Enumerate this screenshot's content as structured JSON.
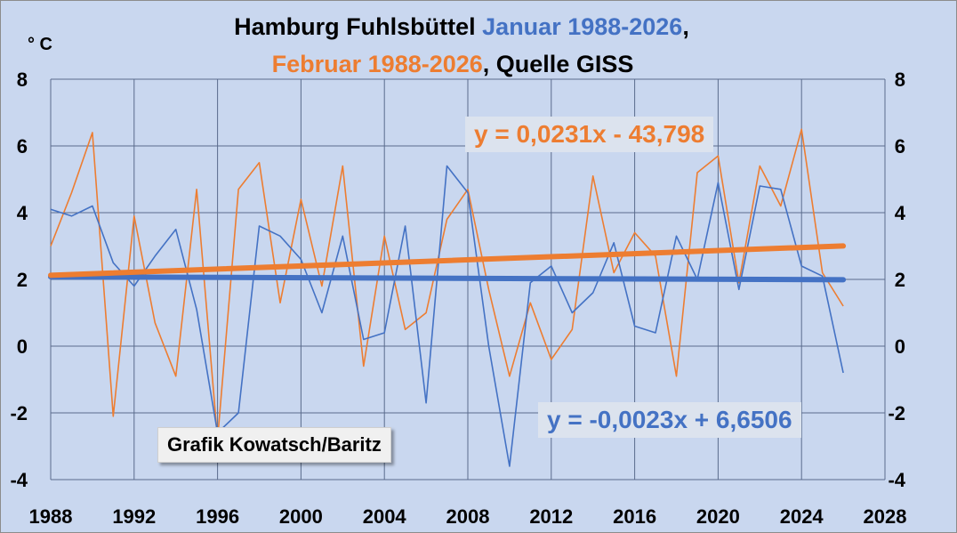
{
  "title": {
    "line1_part1": "Hamburg Fuhlsbüttel ",
    "line1_part2": "Januar 1988-2026",
    "line1_part3": ",",
    "line2_part1": "Februar 1988-2026",
    "line2_part2": ", Quelle GISS"
  },
  "credit": "Grafik Kowatsch/Baritz",
  "colors": {
    "januar": "#4472c4",
    "februar": "#ed7d31",
    "background": "#c9d7ef",
    "grid": "#5a6b8c"
  },
  "chart_data": {
    "type": "line",
    "ylabel": "° C",
    "xlim": [
      1988,
      2028
    ],
    "ylim": [
      -4,
      8
    ],
    "xticks": [
      1988,
      1992,
      1996,
      2000,
      2004,
      2008,
      2012,
      2016,
      2020,
      2024,
      2028
    ],
    "yticks": [
      -4,
      -2,
      0,
      2,
      4,
      6,
      8
    ],
    "grid": true,
    "x": [
      1988,
      1989,
      1990,
      1991,
      1992,
      1993,
      1994,
      1995,
      1996,
      1997,
      1998,
      1999,
      2000,
      2001,
      2002,
      2003,
      2004,
      2005,
      2006,
      2007,
      2008,
      2009,
      2010,
      2011,
      2012,
      2013,
      2014,
      2015,
      2016,
      2017,
      2018,
      2019,
      2020,
      2021,
      2022,
      2023,
      2024,
      2025,
      2026
    ],
    "series": [
      {
        "name": "Januar 1988-2026",
        "color": "#4472c4",
        "values": [
          4.1,
          3.9,
          4.2,
          2.5,
          1.8,
          2.7,
          3.5,
          1.1,
          -2.6,
          -2.0,
          3.6,
          3.3,
          2.6,
          1.0,
          3.3,
          0.2,
          0.4,
          3.6,
          -1.7,
          5.4,
          4.6,
          0.0,
          -3.6,
          1.9,
          2.4,
          1.0,
          1.6,
          3.1,
          0.6,
          0.4,
          3.3,
          2.0,
          4.9,
          1.7,
          4.8,
          4.7,
          2.4,
          2.1,
          -0.8
        ],
        "trendline": {
          "equation": "y = -0,0023x + 6,6506",
          "slope": -0.0023,
          "intercept": 6.6506
        }
      },
      {
        "name": "Februar 1988-2026",
        "color": "#ed7d31",
        "values": [
          3.0,
          4.6,
          6.4,
          -2.1,
          3.9,
          0.7,
          -0.9,
          4.7,
          -2.8,
          4.7,
          5.5,
          1.3,
          4.4,
          1.8,
          5.4,
          -0.6,
          3.3,
          0.5,
          1.0,
          3.8,
          4.7,
          1.7,
          -0.9,
          1.3,
          -0.4,
          0.5,
          5.1,
          2.2,
          3.4,
          2.7,
          -0.9,
          5.2,
          5.7,
          1.9,
          5.4,
          4.2,
          6.5,
          2.2,
          1.2
        ],
        "trendline": {
          "equation": "y = 0,0231x - 43,798",
          "slope": 0.0231,
          "intercept": -43.798
        }
      }
    ]
  }
}
